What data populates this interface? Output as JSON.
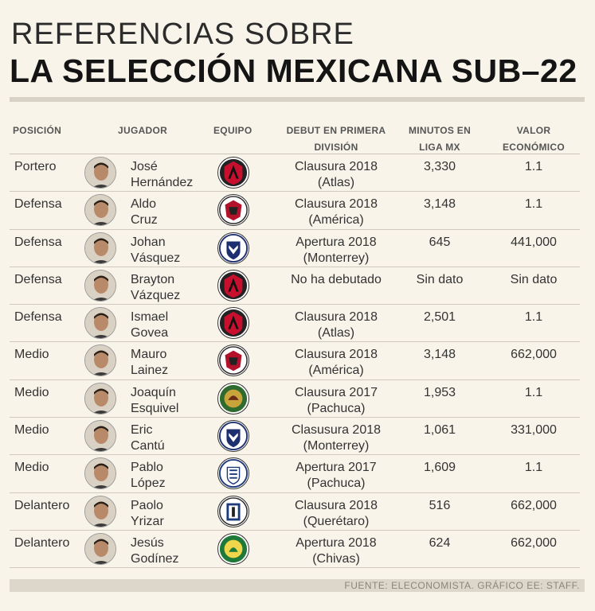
{
  "title_line1": "REFERENCIAS SOBRE",
  "title_line2": "LA SELECCIÓN MEXICANA SUB–22",
  "headers": {
    "position": "POSICIÓN",
    "player": "JUGADOR",
    "team": "EQUIPO",
    "debut_1": "DEBUT EN PRIMERA",
    "debut_2": "DIVISIÓN",
    "minutes_1": "MINUTOS EN",
    "minutes_2": "LIGA MX",
    "value_1": "VALOR",
    "value_2": "ECONÓMICO"
  },
  "rows": [
    {
      "position": "Portero",
      "first": "José",
      "last": "Hernández",
      "team_icon": "atlas-crest-icon",
      "debut_1": "Clausura 2018",
      "debut_2": "(Atlas)",
      "minutes": "3,330",
      "value": "1.1"
    },
    {
      "position": "Defensa",
      "first": "Aldo",
      "last": "Cruz",
      "team_icon": "tijuana-crest-icon",
      "debut_1": "Clausura 2018",
      "debut_2": "(América)",
      "minutes": "3,148",
      "value": "1.1"
    },
    {
      "position": "Defensa",
      "first": "Johan",
      "last": "Vásquez",
      "team_icon": "monterrey-crest-icon",
      "debut_1": "Apertura 2018",
      "debut_2": "(Monterrey)",
      "minutes": "645",
      "value": "441,000"
    },
    {
      "position": "Defensa",
      "first": "Brayton",
      "last": "Vázquez",
      "team_icon": "atlas-crest-icon",
      "debut_1": "No ha debutado",
      "debut_2": "",
      "minutes": "Sin dato",
      "value": "Sin dato"
    },
    {
      "position": "Defensa",
      "first": "Ismael",
      "last": "Govea",
      "team_icon": "atlas-crest-icon",
      "debut_1": "Clausura 2018",
      "debut_2": "(Atlas)",
      "minutes": "2,501",
      "value": "1.1"
    },
    {
      "position": "Medio",
      "first": "Mauro",
      "last": "Lainez",
      "team_icon": "tijuana-crest-icon",
      "debut_1": "Clausura 2018",
      "debut_2": "(América)",
      "minutes": "3,148",
      "value": "662,000"
    },
    {
      "position": "Medio",
      "first": "Joaquín",
      "last": "Esquivel",
      "team_icon": "juarez-crest-icon",
      "debut_1": "Clausura 2017",
      "debut_2": "(Pachuca)",
      "minutes": "1,953",
      "value": "1.1"
    },
    {
      "position": "Medio",
      "first": "Eric",
      "last": "Cantú",
      "team_icon": "monterrey-crest-icon",
      "debut_1": "Clasusura 2018",
      "debut_2": "(Monterrey)",
      "minutes": "1,061",
      "value": "331,000"
    },
    {
      "position": "Medio",
      "first": "Pablo",
      "last": "López",
      "team_icon": "pachuca-crest-icon",
      "debut_1": "Apertura 2017",
      "debut_2": "(Pachuca)",
      "minutes": "1,609",
      "value": "1.1"
    },
    {
      "position": "Delantero",
      "first": "Paolo",
      "last": "Yrizar",
      "team_icon": "queretaro-crest-icon",
      "debut_1": "Clausura 2018",
      "debut_2": "(Querétaro)",
      "minutes": "516",
      "value": "662,000"
    },
    {
      "position": "Delantero",
      "first": "Jesús",
      "last": "Godínez",
      "team_icon": "leon-crest-icon",
      "debut_1": "Apertura 2018",
      "debut_2": "(Chivas)",
      "minutes": "624",
      "value": "662,000"
    }
  ],
  "footer": "FUENTE: ELECONOMISTA. GRÁFICO EE: STAFF."
}
